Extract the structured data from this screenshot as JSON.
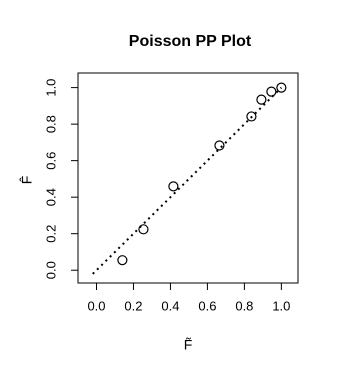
{
  "chart_data": {
    "type": "scatter",
    "title": "Poisson PP Plot",
    "x_label": "F̃",
    "y_label": "F̂",
    "x": [
      0.14,
      0.254,
      0.416,
      0.665,
      0.838,
      0.892,
      0.946,
      1.0
    ],
    "values": [
      0.055,
      0.224,
      0.459,
      0.683,
      0.842,
      0.934,
      0.978,
      1.0
    ],
    "color": "#000000",
    "reference_line": {
      "x": [
        -0.02,
        1.0
      ],
      "y": [
        -0.02,
        1.0
      ]
    },
    "xlim": [
      -0.1,
      1.09
    ],
    "ylim": [
      -0.07,
      1.08
    ],
    "xticks": [
      {
        "value": 0,
        "label": "0.0"
      },
      0.2,
      0.4,
      0.6,
      0.8,
      {
        "value": 1,
        "label": "1.0"
      }
    ],
    "yticks": [
      {
        "value": 0,
        "label": "0.0"
      },
      0.2,
      0.4,
      0.6,
      0.8,
      {
        "value": 1,
        "label": "1.0"
      }
    ],
    "grid": false
  }
}
